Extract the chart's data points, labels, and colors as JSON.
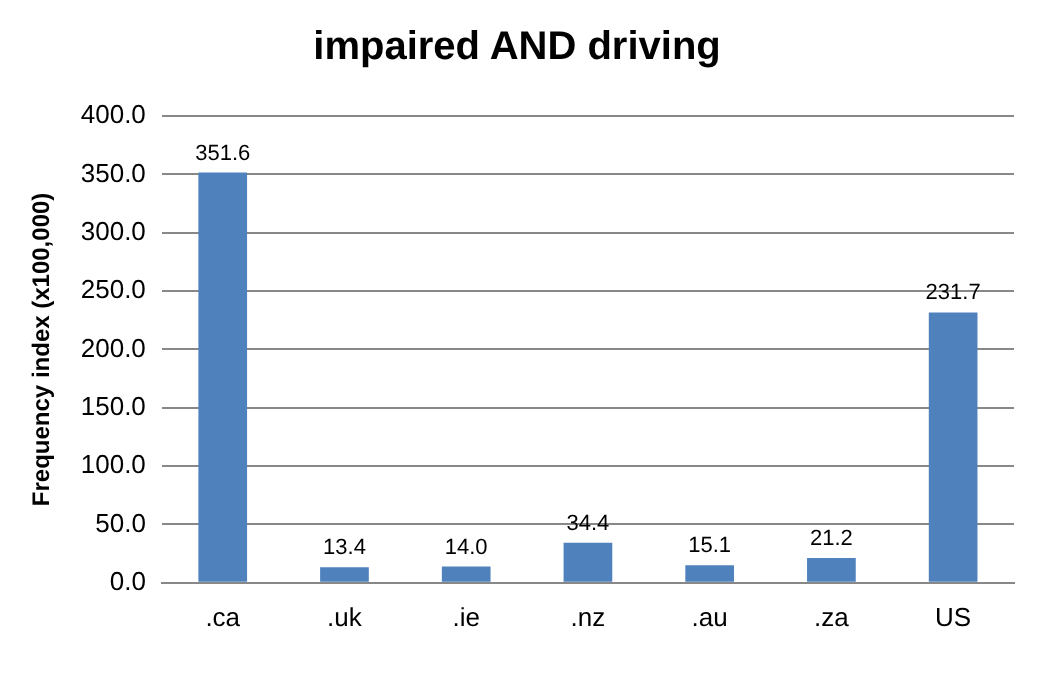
{
  "chart_data": {
    "type": "bar",
    "title": "impaired AND driving",
    "ylabel": "Frequency index (x100,000)",
    "categories": [
      ".ca",
      ".uk",
      ".ie",
      ".nz",
      ".au",
      ".za",
      "US"
    ],
    "values": [
      351.6,
      13.4,
      14.0,
      34.4,
      15.1,
      21.2,
      231.7
    ],
    "value_labels": [
      "351.6",
      "13.4",
      "14.0",
      "34.4",
      "15.1",
      "21.2",
      "231.7"
    ],
    "color": "#4f81bd",
    "ylim": [
      0,
      400
    ],
    "yticks": [
      {
        "value": 0,
        "label": "0.0"
      },
      {
        "value": 50,
        "label": "50.0"
      },
      {
        "value": 100,
        "label": "100.0"
      },
      {
        "value": 150,
        "label": "150.0"
      },
      {
        "value": 200,
        "label": "200.0"
      },
      {
        "value": 250,
        "label": "250.0"
      },
      {
        "value": 300,
        "label": "300.0"
      },
      {
        "value": 350,
        "label": "350.0"
      },
      {
        "value": 400,
        "label": "400.0"
      }
    ],
    "grid": "y",
    "legend": false
  }
}
